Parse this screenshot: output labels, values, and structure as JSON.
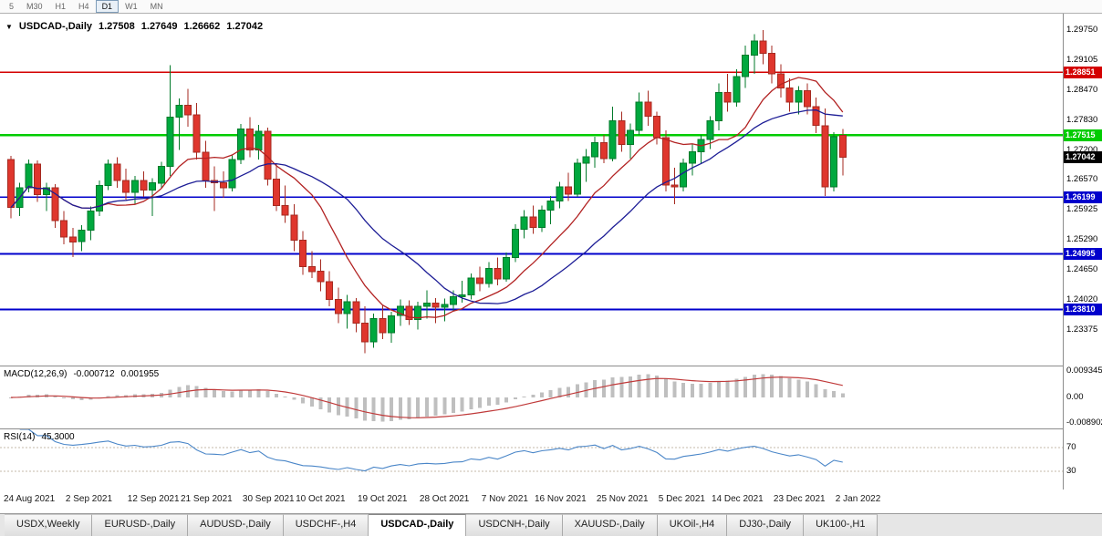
{
  "toolbar": {
    "timeframes": [
      "5",
      "M30",
      "H1",
      "H4",
      "D1",
      "W1",
      "MN"
    ],
    "active_timeframe": "D1"
  },
  "symbol_header": {
    "collapse_icon": "▼",
    "symbol": "USDCAD-,Daily",
    "open": "1.27508",
    "high": "1.27649",
    "low": "1.26662",
    "close": "1.27042"
  },
  "main_chart": {
    "colors": {
      "up": "#00a83e",
      "up_border": "#007a2a",
      "down": "#df362d",
      "down_border": "#a52a20"
    },
    "ma_fast": {
      "period": 10,
      "color": "#b22222"
    },
    "ma_slow": {
      "period": 21,
      "color": "#1d1d96"
    },
    "price_axis_labels": [
      "1.29750",
      "1.29105",
      "1.28470",
      "1.27830",
      "1.27200",
      "1.26570",
      "1.25925",
      "1.25290",
      "1.24650",
      "1.24020",
      "1.23375"
    ],
    "levels": [
      {
        "price": 1.28851,
        "label": "1.28851",
        "color": "#d40000",
        "thickness": 1.6
      },
      {
        "price": 1.27515,
        "label": "1.27515",
        "color": "#00cc00",
        "thickness": 2.4
      },
      {
        "price": 1.26199,
        "label": "1.26199",
        "color": "#0000cc",
        "thickness": 1.8
      },
      {
        "price": 1.24995,
        "label": "1.24995",
        "color": "#0000cc",
        "thickness": 1.8
      },
      {
        "price": 1.2381,
        "label": "1.23810",
        "color": "#0000cc",
        "thickness": 1.8
      }
    ],
    "current_price": {
      "price": 1.27042,
      "label": "1.27042",
      "bg": "#000000"
    },
    "candles": [
      [
        1.27,
        1.2708,
        1.2575,
        1.2598
      ],
      [
        1.2598,
        1.265,
        1.258,
        1.264
      ],
      [
        1.264,
        1.27,
        1.263,
        1.269
      ],
      [
        1.269,
        1.2698,
        1.261,
        1.2625
      ],
      [
        1.2625,
        1.265,
        1.259,
        1.264
      ],
      [
        1.264,
        1.2648,
        1.2555,
        1.257
      ],
      [
        1.257,
        1.259,
        1.252,
        1.2535
      ],
      [
        1.2535,
        1.2555,
        1.2493,
        1.2525
      ],
      [
        1.2525,
        1.256,
        1.2505,
        1.255
      ],
      [
        1.255,
        1.26,
        1.2528,
        1.259
      ],
      [
        1.259,
        1.2655,
        1.258,
        1.2645
      ],
      [
        1.2645,
        1.27,
        1.2635,
        1.269
      ],
      [
        1.269,
        1.2705,
        1.264,
        1.2655
      ],
      [
        1.2655,
        1.268,
        1.2615,
        1.263
      ],
      [
        1.263,
        1.2665,
        1.2605,
        1.2655
      ],
      [
        1.2655,
        1.2675,
        1.262,
        1.2635
      ],
      [
        1.2635,
        1.266,
        1.258,
        1.265
      ],
      [
        1.265,
        1.2695,
        1.264,
        1.2685
      ],
      [
        1.2685,
        1.29,
        1.2665,
        1.279
      ],
      [
        1.279,
        1.283,
        1.272,
        1.2815
      ],
      [
        1.2815,
        1.285,
        1.277,
        1.2795
      ],
      [
        1.2795,
        1.282,
        1.27,
        1.2715
      ],
      [
        1.2715,
        1.274,
        1.264,
        1.2655
      ],
      [
        1.2655,
        1.2685,
        1.259,
        1.265
      ],
      [
        1.265,
        1.2675,
        1.2618,
        1.264
      ],
      [
        1.264,
        1.271,
        1.2632,
        1.27
      ],
      [
        1.27,
        1.2775,
        1.269,
        1.2765
      ],
      [
        1.2765,
        1.279,
        1.2705,
        1.272
      ],
      [
        1.272,
        1.2773,
        1.27,
        1.276
      ],
      [
        1.276,
        1.2768,
        1.2645,
        1.2658
      ],
      [
        1.2658,
        1.269,
        1.259,
        1.2602
      ],
      [
        1.2602,
        1.2645,
        1.2565,
        1.2582
      ],
      [
        1.2582,
        1.2605,
        1.2505,
        1.2528
      ],
      [
        1.2528,
        1.2548,
        1.2455,
        1.2472
      ],
      [
        1.2472,
        1.2505,
        1.2448,
        1.2462
      ],
      [
        1.2462,
        1.2488,
        1.242,
        1.244
      ],
      [
        1.244,
        1.2462,
        1.2388,
        1.2402
      ],
      [
        1.2402,
        1.2428,
        1.2352,
        1.2372
      ],
      [
        1.2372,
        1.2412,
        1.234,
        1.2398
      ],
      [
        1.2398,
        1.2405,
        1.2333,
        1.2352
      ],
      [
        1.2352,
        1.2388,
        1.2288,
        1.2312
      ],
      [
        1.2312,
        1.2372,
        1.23,
        1.2362
      ],
      [
        1.2362,
        1.239,
        1.2318,
        1.2332
      ],
      [
        1.2332,
        1.2376,
        1.231,
        1.2368
      ],
      [
        1.2368,
        1.2402,
        1.2346,
        1.2388
      ],
      [
        1.2388,
        1.24,
        1.2348,
        1.236
      ],
      [
        1.236,
        1.2398,
        1.2338,
        1.2388
      ],
      [
        1.2388,
        1.2422,
        1.2362,
        1.2395
      ],
      [
        1.2395,
        1.2405,
        1.2352,
        1.2386
      ],
      [
        1.2386,
        1.2404,
        1.2356,
        1.2392
      ],
      [
        1.2392,
        1.2422,
        1.2378,
        1.2408
      ],
      [
        1.2408,
        1.2442,
        1.2396,
        1.2412
      ],
      [
        1.2412,
        1.2458,
        1.2402,
        1.2448
      ],
      [
        1.2448,
        1.2472,
        1.242,
        1.2436
      ],
      [
        1.2436,
        1.2482,
        1.2428,
        1.2468
      ],
      [
        1.2468,
        1.2492,
        1.2432,
        1.2446
      ],
      [
        1.2446,
        1.2502,
        1.244,
        1.2492
      ],
      [
        1.2492,
        1.2562,
        1.2482,
        1.2552
      ],
      [
        1.2552,
        1.2592,
        1.2532,
        1.2578
      ],
      [
        1.2578,
        1.2602,
        1.2542,
        1.2556
      ],
      [
        1.2556,
        1.2602,
        1.2546,
        1.2592
      ],
      [
        1.2592,
        1.2622,
        1.2562,
        1.2612
      ],
      [
        1.2612,
        1.2652,
        1.2596,
        1.2642
      ],
      [
        1.2642,
        1.2672,
        1.2612,
        1.2626
      ],
      [
        1.2626,
        1.2702,
        1.262,
        1.2692
      ],
      [
        1.2692,
        1.2722,
        1.2652,
        1.2706
      ],
      [
        1.2706,
        1.2748,
        1.2682,
        1.2736
      ],
      [
        1.2736,
        1.2752,
        1.2692,
        1.2702
      ],
      [
        1.2702,
        1.2812,
        1.2696,
        1.2782
      ],
      [
        1.2782,
        1.2802,
        1.2716,
        1.2732
      ],
      [
        1.2732,
        1.2776,
        1.2702,
        1.2762
      ],
      [
        1.2762,
        1.2842,
        1.2752,
        1.2822
      ],
      [
        1.2822,
        1.2846,
        1.2772,
        1.2792
      ],
      [
        1.2792,
        1.2802,
        1.2732,
        1.2746
      ],
      [
        1.2746,
        1.2762,
        1.2632,
        1.2646
      ],
      [
        1.2646,
        1.2682,
        1.2605,
        1.2642
      ],
      [
        1.2642,
        1.2702,
        1.2632,
        1.2692
      ],
      [
        1.2692,
        1.2732,
        1.2666,
        1.2716
      ],
      [
        1.2716,
        1.2752,
        1.2692,
        1.2742
      ],
      [
        1.2742,
        1.2792,
        1.2722,
        1.2782
      ],
      [
        1.2782,
        1.2862,
        1.2762,
        1.2842
      ],
      [
        1.2842,
        1.2882,
        1.2802,
        1.2822
      ],
      [
        1.2822,
        1.2892,
        1.2812,
        1.2876
      ],
      [
        1.2876,
        1.2942,
        1.2852,
        1.2922
      ],
      [
        1.2922,
        1.2966,
        1.2882,
        1.2952
      ],
      [
        1.2952,
        1.2975,
        1.2902,
        1.2926
      ],
      [
        1.2926,
        1.2942,
        1.2862,
        1.2882
      ],
      [
        1.2882,
        1.2902,
        1.2832,
        1.2852
      ],
      [
        1.2852,
        1.2872,
        1.2802,
        1.2822
      ],
      [
        1.2822,
        1.2856,
        1.2796,
        1.2846
      ],
      [
        1.2846,
        1.2862,
        1.2796,
        1.2812
      ],
      [
        1.2812,
        1.2832,
        1.2756,
        1.2772
      ],
      [
        1.2772,
        1.2808,
        1.2622,
        1.2642
      ],
      [
        1.2642,
        1.2758,
        1.2632,
        1.2748
      ],
      [
        1.27508,
        1.27649,
        1.26662,
        1.27042
      ]
    ]
  },
  "macd_panel": {
    "label": "MACD(12,26,9)",
    "value_main": "-0.000712",
    "value_signal": "0.001955",
    "params": {
      "fast": 12,
      "slow": 26,
      "signal": 9
    },
    "histogram_color": "#bfbfbf",
    "signal_color": "#c03a3a",
    "axis": [
      {
        "label": "0.009345",
        "value": 0.009345
      },
      {
        "label": "0.00",
        "value": 0
      },
      {
        "label": "-0.008902",
        "value": -0.008902
      }
    ]
  },
  "rsi_panel": {
    "label": "RSI(14)",
    "value": "45.3000",
    "period": 14,
    "line_color": "#4a86c8",
    "levels": [
      {
        "label": "70",
        "value": 70
      },
      {
        "label": "30",
        "value": 30
      }
    ]
  },
  "time_axis": {
    "labels": [
      "24 Aug 2021",
      "2 Sep 2021",
      "12 Sep 2021",
      "21 Sep 2021",
      "30 Sep 2021",
      "10 Oct 2021",
      "19 Oct 2021",
      "28 Oct 2021",
      "7 Nov 2021",
      "16 Nov 2021",
      "25 Nov 2021",
      "5 Dec 2021",
      "14 Dec 2021",
      "23 Dec 2021",
      "2 Jan 2022"
    ],
    "indices": [
      0,
      7,
      14,
      20,
      27,
      33,
      40,
      47,
      54,
      60,
      67,
      74,
      80,
      87,
      94
    ]
  },
  "tabs": {
    "active": "USDCAD-,Daily",
    "items": [
      {
        "label": "USDX,Weekly"
      },
      {
        "label": "EURUSD-,Daily"
      },
      {
        "label": "AUDUSD-,Daily"
      },
      {
        "label": "USDCHF-,H4"
      },
      {
        "label": "USDCAD-,Daily"
      },
      {
        "label": "USDCNH-,Daily"
      },
      {
        "label": "XAUUSD-,Daily"
      },
      {
        "label": "UKOil-,H4"
      },
      {
        "label": "DJ30-,Daily"
      },
      {
        "label": "UK100-,H1"
      }
    ]
  }
}
